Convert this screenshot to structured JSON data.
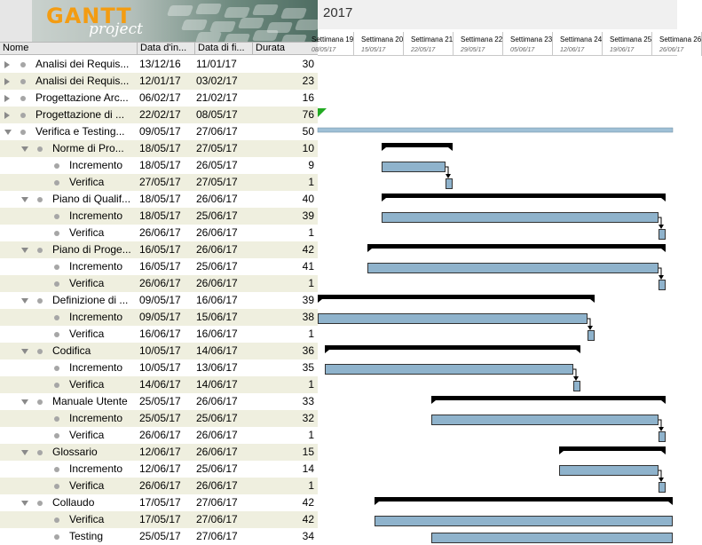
{
  "logo": {
    "brand": "GANTT",
    "sub": "project"
  },
  "columns": {
    "name": "Nome",
    "start": "Data d'in...",
    "end": "Data di fi...",
    "duration": "Durata"
  },
  "chart_header": {
    "year": "2017",
    "weeks": [
      {
        "label": "Settimana 19",
        "date": "08/05/17"
      },
      {
        "label": "Settimana 20",
        "date": "15/05/17"
      },
      {
        "label": "Settimana 21",
        "date": "22/05/17"
      },
      {
        "label": "Settimana 22",
        "date": "29/05/17"
      },
      {
        "label": "Settimana 23",
        "date": "05/06/17"
      },
      {
        "label": "Settimana 24",
        "date": "12/06/17"
      },
      {
        "label": "Settimana 25",
        "date": "19/06/17"
      },
      {
        "label": "Settimana 26",
        "date": "26/06/17"
      }
    ]
  },
  "tasks": [
    {
      "name": "Analisi dei Requis...",
      "start": "13/12/16",
      "end": "11/01/17",
      "duration": "30",
      "level": 0,
      "toggle": "closed"
    },
    {
      "name": "Analisi dei Requis...",
      "start": "12/01/17",
      "end": "03/02/17",
      "duration": "23",
      "level": 0,
      "toggle": "closed"
    },
    {
      "name": "Progettazione Arc...",
      "start": "06/02/17",
      "end": "21/02/17",
      "duration": "16",
      "level": 0,
      "toggle": "closed"
    },
    {
      "name": "Progettazione di ...",
      "start": "22/02/17",
      "end": "08/05/17",
      "duration": "76",
      "level": 0,
      "toggle": "closed"
    },
    {
      "name": "Verifica e Testing...",
      "start": "09/05/17",
      "end": "27/06/17",
      "duration": "50",
      "level": 0,
      "toggle": "open"
    },
    {
      "name": "Norme di Pro...",
      "start": "18/05/17",
      "end": "27/05/17",
      "duration": "10",
      "level": 1,
      "toggle": "open"
    },
    {
      "name": "Incremento",
      "start": "18/05/17",
      "end": "26/05/17",
      "duration": "9",
      "level": 2,
      "toggle": "none"
    },
    {
      "name": "Verifica",
      "start": "27/05/17",
      "end": "27/05/17",
      "duration": "1",
      "level": 2,
      "toggle": "none"
    },
    {
      "name": "Piano di Qualif...",
      "start": "18/05/17",
      "end": "26/06/17",
      "duration": "40",
      "level": 1,
      "toggle": "open"
    },
    {
      "name": "Incremento",
      "start": "18/05/17",
      "end": "25/06/17",
      "duration": "39",
      "level": 2,
      "toggle": "none"
    },
    {
      "name": "Verifica",
      "start": "26/06/17",
      "end": "26/06/17",
      "duration": "1",
      "level": 2,
      "toggle": "none"
    },
    {
      "name": "Piano di Proge...",
      "start": "16/05/17",
      "end": "26/06/17",
      "duration": "42",
      "level": 1,
      "toggle": "open"
    },
    {
      "name": "Incremento",
      "start": "16/05/17",
      "end": "25/06/17",
      "duration": "41",
      "level": 2,
      "toggle": "none"
    },
    {
      "name": "Verifica",
      "start": "26/06/17",
      "end": "26/06/17",
      "duration": "1",
      "level": 2,
      "toggle": "none"
    },
    {
      "name": "Definizione di ...",
      "start": "09/05/17",
      "end": "16/06/17",
      "duration": "39",
      "level": 1,
      "toggle": "open"
    },
    {
      "name": "Incremento",
      "start": "09/05/17",
      "end": "15/06/17",
      "duration": "38",
      "level": 2,
      "toggle": "none"
    },
    {
      "name": "Verifica",
      "start": "16/06/17",
      "end": "16/06/17",
      "duration": "1",
      "level": 2,
      "toggle": "none"
    },
    {
      "name": "Codifica",
      "start": "10/05/17",
      "end": "14/06/17",
      "duration": "36",
      "level": 1,
      "toggle": "open"
    },
    {
      "name": "Incremento",
      "start": "10/05/17",
      "end": "13/06/17",
      "duration": "35",
      "level": 2,
      "toggle": "none"
    },
    {
      "name": "Verifica",
      "start": "14/06/17",
      "end": "14/06/17",
      "duration": "1",
      "level": 2,
      "toggle": "none"
    },
    {
      "name": "Manuale Utente",
      "start": "25/05/17",
      "end": "26/06/17",
      "duration": "33",
      "level": 1,
      "toggle": "open"
    },
    {
      "name": "Incremento",
      "start": "25/05/17",
      "end": "25/06/17",
      "duration": "32",
      "level": 2,
      "toggle": "none"
    },
    {
      "name": "Verifica",
      "start": "26/06/17",
      "end": "26/06/17",
      "duration": "1",
      "level": 2,
      "toggle": "none"
    },
    {
      "name": "Glossario",
      "start": "12/06/17",
      "end": "26/06/17",
      "duration": "15",
      "level": 1,
      "toggle": "open"
    },
    {
      "name": "Incremento",
      "start": "12/06/17",
      "end": "25/06/17",
      "duration": "14",
      "level": 2,
      "toggle": "none"
    },
    {
      "name": "Verifica",
      "start": "26/06/17",
      "end": "26/06/17",
      "duration": "1",
      "level": 2,
      "toggle": "none"
    },
    {
      "name": "Collaudo",
      "start": "17/05/17",
      "end": "27/06/17",
      "duration": "42",
      "level": 1,
      "toggle": "open"
    },
    {
      "name": "Verifica",
      "start": "17/05/17",
      "end": "27/06/17",
      "duration": "42",
      "level": 2,
      "toggle": "none"
    },
    {
      "name": "Testing",
      "start": "25/05/17",
      "end": "27/06/17",
      "duration": "34",
      "level": 2,
      "toggle": "none"
    }
  ],
  "colors": {
    "task_bar": "#8fb3cc",
    "summary_bar": "#000000",
    "milestone": "#22aa22",
    "row_alt": "#efefdf"
  }
}
